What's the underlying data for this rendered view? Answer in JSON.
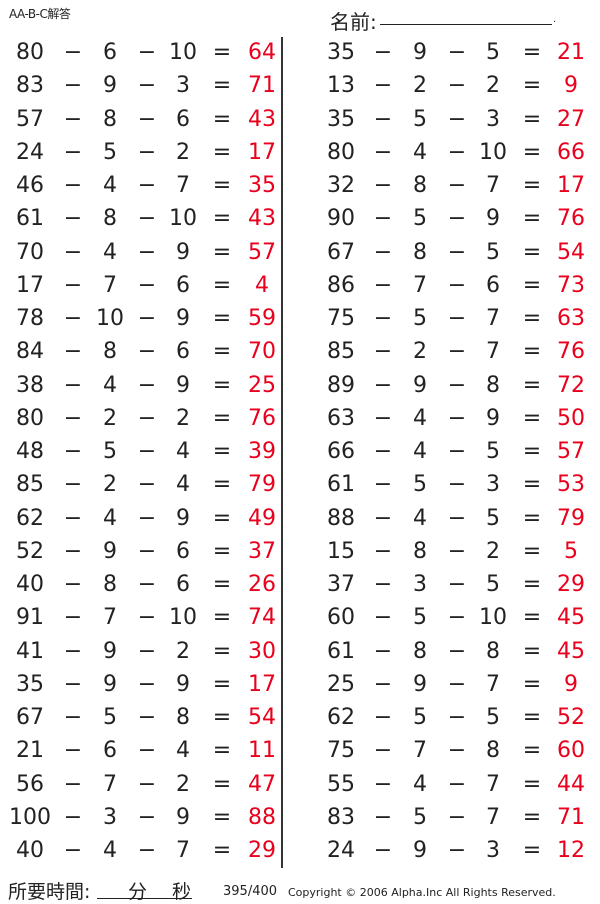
{
  "header": {
    "code": "AA-B-C解答",
    "name_label": "名前:",
    "name_dot": "."
  },
  "operators": {
    "minus": "−",
    "equals": "="
  },
  "left": [
    [
      80,
      6,
      10,
      64
    ],
    [
      83,
      9,
      3,
      71
    ],
    [
      57,
      8,
      6,
      43
    ],
    [
      24,
      5,
      2,
      17
    ],
    [
      46,
      4,
      7,
      35
    ],
    [
      61,
      8,
      10,
      43
    ],
    [
      70,
      4,
      9,
      57
    ],
    [
      17,
      7,
      6,
      4
    ],
    [
      78,
      10,
      9,
      59
    ],
    [
      84,
      8,
      6,
      70
    ],
    [
      38,
      4,
      9,
      25
    ],
    [
      80,
      2,
      2,
      76
    ],
    [
      48,
      5,
      4,
      39
    ],
    [
      85,
      2,
      4,
      79
    ],
    [
      62,
      4,
      9,
      49
    ],
    [
      52,
      9,
      6,
      37
    ],
    [
      40,
      8,
      6,
      26
    ],
    [
      91,
      7,
      10,
      74
    ],
    [
      41,
      9,
      2,
      30
    ],
    [
      35,
      9,
      9,
      17
    ],
    [
      67,
      5,
      8,
      54
    ],
    [
      21,
      6,
      4,
      11
    ],
    [
      56,
      7,
      2,
      47
    ],
    [
      100,
      3,
      9,
      88
    ],
    [
      40,
      4,
      7,
      29
    ]
  ],
  "right": [
    [
      35,
      9,
      5,
      21
    ],
    [
      13,
      2,
      2,
      9
    ],
    [
      35,
      5,
      3,
      27
    ],
    [
      80,
      4,
      10,
      66
    ],
    [
      32,
      8,
      7,
      17
    ],
    [
      90,
      5,
      9,
      76
    ],
    [
      67,
      8,
      5,
      54
    ],
    [
      86,
      7,
      6,
      73
    ],
    [
      75,
      5,
      7,
      63
    ],
    [
      85,
      2,
      7,
      76
    ],
    [
      89,
      9,
      8,
      72
    ],
    [
      63,
      4,
      9,
      50
    ],
    [
      66,
      4,
      5,
      57
    ],
    [
      61,
      5,
      3,
      53
    ],
    [
      88,
      4,
      5,
      79
    ],
    [
      15,
      8,
      2,
      5
    ],
    [
      37,
      3,
      5,
      29
    ],
    [
      60,
      5,
      10,
      45
    ],
    [
      61,
      8,
      8,
      45
    ],
    [
      25,
      9,
      7,
      9
    ],
    [
      62,
      5,
      5,
      52
    ],
    [
      75,
      7,
      8,
      60
    ],
    [
      55,
      4,
      7,
      44
    ],
    [
      83,
      5,
      7,
      71
    ],
    [
      24,
      9,
      3,
      12
    ]
  ],
  "footer": {
    "time_label": "所要時間:",
    "minutes": "分",
    "seconds": "秒",
    "page": "395/400",
    "copyright": "Copyright © 2006 Alpha.Inc All Rights Reserved."
  },
  "colors": {
    "answer": "#e8001c"
  }
}
